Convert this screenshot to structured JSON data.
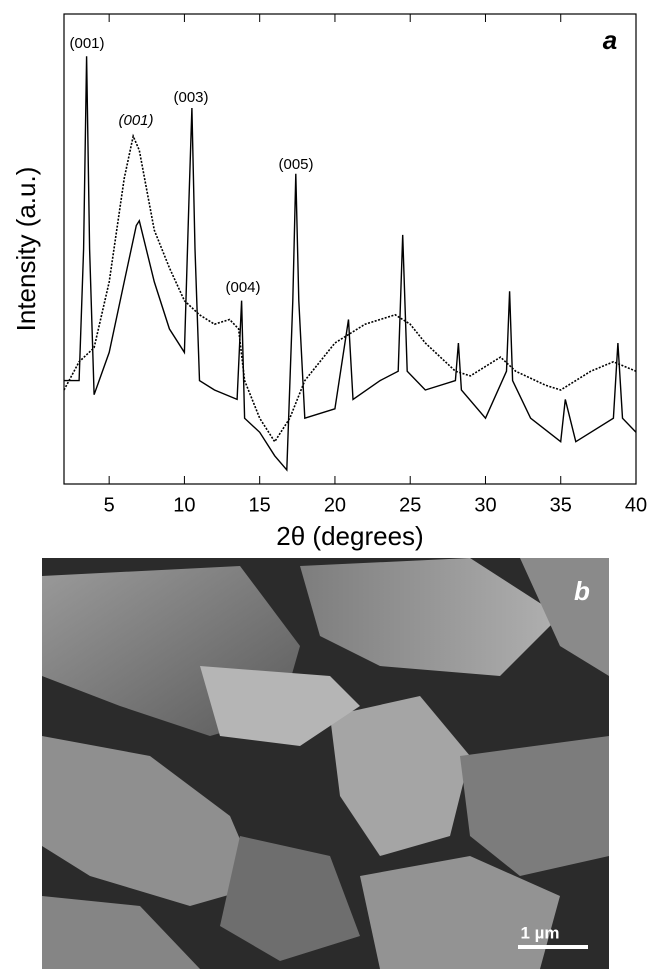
{
  "chart_data": {
    "type": "line",
    "panel_label": "a",
    "xlabel": "2θ (degrees)",
    "ylabel": "Intensity (a.u.)",
    "xlim": [
      2,
      40
    ],
    "xticks": [
      5,
      10,
      15,
      20,
      25,
      30,
      35,
      40
    ],
    "ylim": [
      0,
      100
    ],
    "annotations": [
      "(001)",
      "(001)",
      "(003)",
      "(004)",
      "(005)"
    ],
    "series": [
      {
        "color": "#000000",
        "style": "solid",
        "x": [
          2,
          3,
          3.3,
          3.5,
          3.7,
          4,
          5,
          6,
          6.8,
          7,
          8,
          9,
          10,
          10.3,
          10.5,
          10.7,
          11,
          12,
          13.5,
          13.8,
          14,
          15,
          16,
          16.8,
          17.2,
          17.4,
          17.6,
          18,
          20,
          20.9,
          21.2,
          23,
          24.2,
          24.5,
          24.8,
          26,
          28,
          28.2,
          28.4,
          30,
          31.4,
          31.6,
          31.8,
          33,
          35,
          35.3,
          36,
          38.5,
          38.8,
          39.1,
          40
        ],
        "values": [
          22,
          22,
          50,
          91,
          50,
          19,
          28,
          43,
          55,
          56,
          43,
          33,
          28,
          60,
          80,
          50,
          22,
          20,
          18,
          39,
          14,
          11,
          6,
          3,
          39,
          66,
          39,
          14,
          16,
          35,
          18,
          22,
          24,
          53,
          24,
          20,
          22,
          30,
          20,
          14,
          24,
          41,
          22,
          14,
          9,
          18,
          9,
          14,
          30,
          14,
          11
        ]
      },
      {
        "color": "#000000",
        "style": "dotted",
        "x": [
          2,
          3,
          4,
          5,
          6,
          6.6,
          7,
          8,
          9,
          10,
          11,
          12,
          13,
          13.6,
          14,
          15,
          16,
          17,
          18,
          20,
          22,
          24,
          25,
          26,
          28,
          29,
          31,
          32,
          34,
          35,
          37,
          38.5,
          40
        ],
        "values": [
          20,
          26,
          29,
          43,
          65,
          74,
          71,
          54,
          46,
          39,
          36,
          34,
          35,
          33,
          22,
          14,
          9,
          14,
          22,
          30,
          34,
          36,
          34,
          30,
          24,
          23,
          27,
          24,
          21,
          20,
          24,
          26,
          24
        ]
      }
    ]
  },
  "image_panel": {
    "label": "b",
    "scale_bar": "1 µm"
  }
}
